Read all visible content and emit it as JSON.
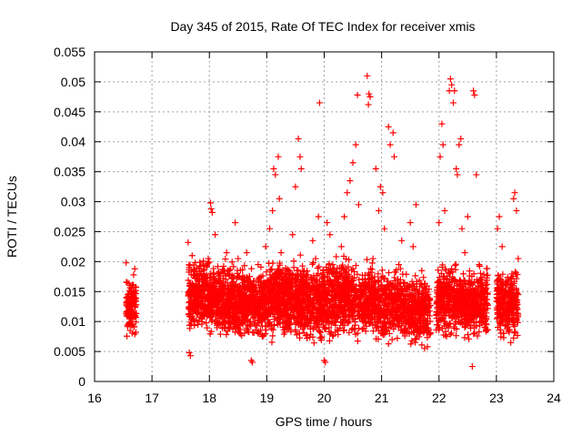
{
  "chart_data": {
    "type": "scatter",
    "title": "Day 345 of 2015, Rate Of TEC Index for receiver xmis",
    "xlabel": "GPS time / hours",
    "ylabel": "ROTI / TECUs",
    "xlim": [
      16,
      24
    ],
    "ylim": [
      0,
      0.055
    ],
    "xticks": [
      16,
      17,
      18,
      19,
      20,
      21,
      22,
      23,
      24
    ],
    "xtick_labels": [
      "16",
      "17",
      "18",
      "19",
      "20",
      "21",
      "22",
      "23",
      "24"
    ],
    "yticks": [
      0,
      0.005,
      0.01,
      0.015,
      0.02,
      0.025,
      0.03,
      0.035,
      0.04,
      0.045,
      0.05,
      0.055
    ],
    "ytick_labels": [
      "0",
      "0.005",
      "0.01",
      "0.015",
      "0.02",
      "0.025",
      "0.03",
      "0.035",
      "0.04",
      "0.045",
      "0.05",
      "0.055"
    ],
    "grid": true,
    "marker": "+",
    "marker_color": "#ff0000",
    "series": [
      {
        "name": "ROTI",
        "points": [
          [
            16.55,
            0.0198
          ],
          [
            16.57,
            0.0165
          ],
          [
            16.58,
            0.0145
          ],
          [
            16.6,
            0.0125
          ],
          [
            16.61,
            0.0105
          ],
          [
            16.62,
            0.0085
          ],
          [
            16.63,
            0.0135
          ],
          [
            16.64,
            0.0155
          ],
          [
            16.65,
            0.0115
          ],
          [
            16.66,
            0.0095
          ],
          [
            16.68,
            0.0178
          ],
          [
            16.7,
            0.0188
          ],
          [
            16.7,
            0.0125
          ],
          [
            16.72,
            0.0082
          ],
          [
            17.63,
            0.0232
          ],
          [
            17.65,
            0.0048
          ],
          [
            17.67,
            0.0043
          ],
          [
            17.7,
            0.021
          ],
          [
            17.72,
            0.0125
          ],
          [
            17.75,
            0.0155
          ],
          [
            17.8,
            0.0095
          ],
          [
            17.85,
            0.0135
          ],
          [
            17.9,
            0.0175
          ],
          [
            17.95,
            0.0115
          ],
          [
            17.98,
            0.0205
          ],
          [
            18.02,
            0.0298
          ],
          [
            18.03,
            0.0288
          ],
          [
            18.05,
            0.0282
          ],
          [
            18.1,
            0.0245
          ],
          [
            18.12,
            0.0155
          ],
          [
            18.15,
            0.0105
          ],
          [
            18.2,
            0.0095
          ],
          [
            18.25,
            0.0185
          ],
          [
            18.3,
            0.0215
          ],
          [
            18.35,
            0.0135
          ],
          [
            18.4,
            0.0165
          ],
          [
            18.45,
            0.0265
          ],
          [
            18.5,
            0.0205
          ],
          [
            18.55,
            0.0115
          ],
          [
            18.6,
            0.0145
          ],
          [
            18.65,
            0.0215
          ],
          [
            18.7,
            0.0175
          ],
          [
            18.73,
            0.0035
          ],
          [
            18.75,
            0.0032
          ],
          [
            18.8,
            0.0125
          ],
          [
            18.85,
            0.0195
          ],
          [
            18.9,
            0.0105
          ],
          [
            18.95,
            0.0155
          ],
          [
            18.98,
            0.0225
          ],
          [
            19.05,
            0.0255
          ],
          [
            19.1,
            0.0285
          ],
          [
            19.12,
            0.0355
          ],
          [
            19.15,
            0.0345
          ],
          [
            19.2,
            0.0375
          ],
          [
            19.22,
            0.0305
          ],
          [
            19.25,
            0.0215
          ],
          [
            19.3,
            0.0135
          ],
          [
            19.35,
            0.0165
          ],
          [
            19.4,
            0.0095
          ],
          [
            19.45,
            0.0245
          ],
          [
            19.5,
            0.0325
          ],
          [
            19.55,
            0.0405
          ],
          [
            19.58,
            0.0375
          ],
          [
            19.6,
            0.0355
          ],
          [
            19.65,
            0.0185
          ],
          [
            19.7,
            0.0115
          ],
          [
            19.75,
            0.0145
          ],
          [
            19.8,
            0.0235
          ],
          [
            19.85,
            0.0205
          ],
          [
            19.9,
            0.0275
          ],
          [
            19.92,
            0.0465
          ],
          [
            19.95,
            0.0155
          ],
          [
            20.0,
            0.0035
          ],
          [
            20.02,
            0.0032
          ],
          [
            20.05,
            0.0265
          ],
          [
            20.1,
            0.0245
          ],
          [
            20.15,
            0.0195
          ],
          [
            20.2,
            0.0125
          ],
          [
            20.25,
            0.0165
          ],
          [
            20.3,
            0.0225
          ],
          [
            20.35,
            0.0275
          ],
          [
            20.4,
            0.0315
          ],
          [
            20.45,
            0.0335
          ],
          [
            20.5,
            0.0365
          ],
          [
            20.55,
            0.0395
          ],
          [
            20.58,
            0.0478
          ],
          [
            20.6,
            0.0295
          ],
          [
            20.65,
            0.0145
          ],
          [
            20.7,
            0.0105
          ],
          [
            20.75,
            0.051
          ],
          [
            20.77,
            0.0462
          ],
          [
            20.78,
            0.048
          ],
          [
            20.8,
            0.0475
          ],
          [
            20.85,
            0.0205
          ],
          [
            20.9,
            0.0355
          ],
          [
            20.95,
            0.0285
          ],
          [
            20.98,
            0.0325
          ],
          [
            21.02,
            0.0315
          ],
          [
            21.05,
            0.0255
          ],
          [
            21.08,
            0.0155
          ],
          [
            21.1,
            0.0105
          ],
          [
            21.12,
            0.0425
          ],
          [
            21.15,
            0.0395
          ],
          [
            21.2,
            0.0415
          ],
          [
            21.22,
            0.0375
          ],
          [
            21.25,
            0.0135
          ],
          [
            21.3,
            0.0195
          ],
          [
            21.35,
            0.0235
          ],
          [
            21.4,
            0.0165
          ],
          [
            21.45,
            0.0115
          ],
          [
            21.5,
            0.0265
          ],
          [
            21.55,
            0.0225
          ],
          [
            21.6,
            0.0295
          ],
          [
            21.65,
            0.0145
          ],
          [
            21.7,
            0.0185
          ],
          [
            21.75,
            0.0055
          ],
          [
            21.8,
            0.0125
          ],
          [
            22.0,
            0.0265
          ],
          [
            22.02,
            0.0375
          ],
          [
            22.05,
            0.043
          ],
          [
            22.07,
            0.0395
          ],
          [
            22.1,
            0.0285
          ],
          [
            22.12,
            0.0185
          ],
          [
            22.15,
            0.0155
          ],
          [
            22.18,
            0.0485
          ],
          [
            22.2,
            0.0505
          ],
          [
            22.22,
            0.0495
          ],
          [
            22.25,
            0.0465
          ],
          [
            22.27,
            0.0485
          ],
          [
            22.3,
            0.0355
          ],
          [
            22.32,
            0.0345
          ],
          [
            22.35,
            0.0395
          ],
          [
            22.38,
            0.0405
          ],
          [
            22.4,
            0.0255
          ],
          [
            22.45,
            0.0215
          ],
          [
            22.5,
            0.0275
          ],
          [
            22.55,
            0.0125
          ],
          [
            22.58,
            0.0025
          ],
          [
            22.6,
            0.0485
          ],
          [
            22.62,
            0.0478
          ],
          [
            22.65,
            0.0345
          ],
          [
            22.7,
            0.0195
          ],
          [
            22.75,
            0.0105
          ],
          [
            22.8,
            0.0135
          ],
          [
            23.02,
            0.0255
          ],
          [
            23.05,
            0.0275
          ],
          [
            23.1,
            0.0225
          ],
          [
            23.15,
            0.0145
          ],
          [
            23.2,
            0.0095
          ],
          [
            23.25,
            0.0065
          ],
          [
            23.3,
            0.0305
          ],
          [
            23.32,
            0.0315
          ],
          [
            23.35,
            0.0285
          ],
          [
            23.38,
            0.0205
          ]
        ],
        "bands": [
          {
            "x": [
              16.55,
              16.73
            ],
            "y": [
              0.007,
              0.018
            ],
            "count": 120,
            "seed": 11
          },
          {
            "x": [
              17.63,
              18.0
            ],
            "y": [
              0.007,
              0.022
            ],
            "count": 300,
            "seed": 23
          },
          {
            "x": [
              18.0,
              18.5
            ],
            "y": [
              0.006,
              0.021
            ],
            "count": 420,
            "seed": 37
          },
          {
            "x": [
              18.5,
              19.0
            ],
            "y": [
              0.006,
              0.02
            ],
            "count": 400,
            "seed": 41
          },
          {
            "x": [
              19.0,
              19.5
            ],
            "y": [
              0.006,
              0.022
            ],
            "count": 440,
            "seed": 53
          },
          {
            "x": [
              19.5,
              20.0
            ],
            "y": [
              0.005,
              0.022
            ],
            "count": 440,
            "seed": 67
          },
          {
            "x": [
              20.0,
              20.5
            ],
            "y": [
              0.006,
              0.022
            ],
            "count": 420,
            "seed": 71
          },
          {
            "x": [
              20.5,
              20.9
            ],
            "y": [
              0.006,
              0.021
            ],
            "count": 280,
            "seed": 83
          },
          {
            "x": [
              20.9,
              21.45
            ],
            "y": [
              0.005,
              0.02
            ],
            "count": 400,
            "seed": 97
          },
          {
            "x": [
              21.45,
              21.85
            ],
            "y": [
              0.005,
              0.019
            ],
            "count": 300,
            "seed": 101
          },
          {
            "x": [
              21.95,
              22.45
            ],
            "y": [
              0.006,
              0.021
            ],
            "count": 380,
            "seed": 113
          },
          {
            "x": [
              22.45,
              22.85
            ],
            "y": [
              0.006,
              0.02
            ],
            "count": 320,
            "seed": 127
          },
          {
            "x": [
              23.0,
              23.38
            ],
            "y": [
              0.006,
              0.02
            ],
            "count": 300,
            "seed": 131
          }
        ]
      }
    ]
  }
}
